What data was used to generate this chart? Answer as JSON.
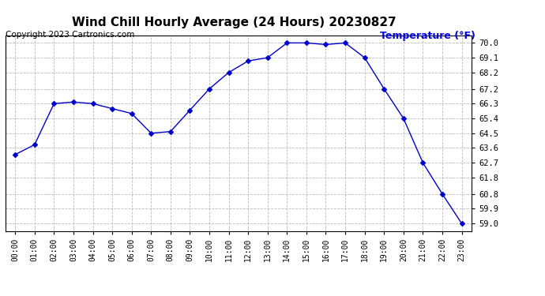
{
  "title": "Wind Chill Hourly Average (24 Hours) 20230827",
  "copyright": "Copyright 2023 Cartronics.com",
  "ylabel": "Temperature (°F)",
  "ylabel_color": "#0000dd",
  "x_labels": [
    "00:00",
    "01:00",
    "02:00",
    "03:00",
    "04:00",
    "05:00",
    "06:00",
    "07:00",
    "08:00",
    "09:00",
    "10:00",
    "11:00",
    "12:00",
    "13:00",
    "14:00",
    "15:00",
    "16:00",
    "17:00",
    "18:00",
    "19:00",
    "20:00",
    "21:00",
    "22:00",
    "23:00"
  ],
  "y_values": [
    63.2,
    63.8,
    66.3,
    66.4,
    66.3,
    66.0,
    65.7,
    64.5,
    64.6,
    65.9,
    67.2,
    68.2,
    68.9,
    69.1,
    70.0,
    70.0,
    69.9,
    70.0,
    69.1,
    67.2,
    65.4,
    62.7,
    60.8,
    59.0
  ],
  "line_color": "#0000cc",
  "marker": "D",
  "marker_size": 3,
  "ylim_min": 58.55,
  "ylim_max": 70.45,
  "yticks": [
    59.0,
    59.9,
    60.8,
    61.8,
    62.7,
    63.6,
    64.5,
    65.4,
    66.3,
    67.2,
    68.2,
    69.1,
    70.0
  ],
  "background_color": "#ffffff",
  "grid_color": "#aaaaaa",
  "title_fontsize": 11,
  "copyright_fontsize": 7.5,
  "ylabel_fontsize": 9
}
